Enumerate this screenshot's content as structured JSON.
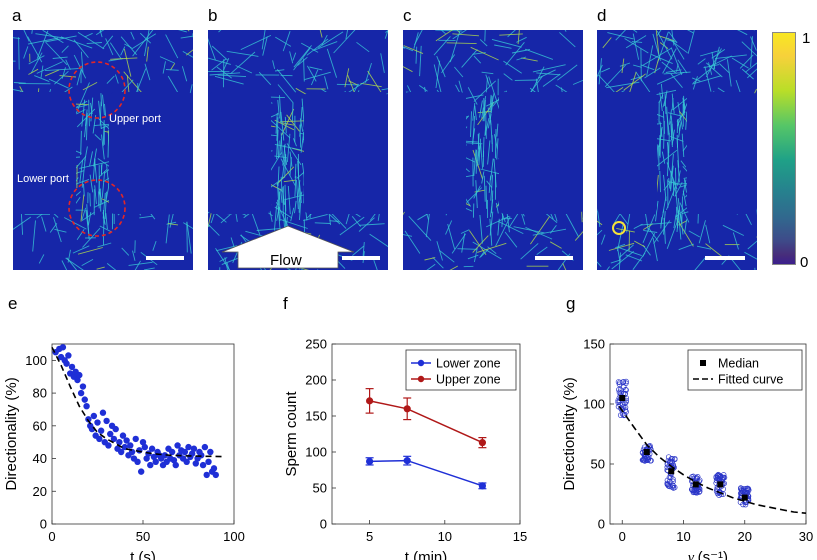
{
  "panel_labels": {
    "a": "a",
    "b": "b",
    "c": "c",
    "d": "d",
    "e": "e",
    "f": "f",
    "g": "g"
  },
  "images": {
    "a_upper_port": "Upper port",
    "a_lower_port": "Lower port",
    "b_flow": "Flow",
    "colorbar_max": "1",
    "colorbar_min": "0"
  },
  "colors": {
    "channel": "#1626a8",
    "fibre": "#38c9d6",
    "series_blue": "#1f2fd6",
    "series_red": "#b01818"
  },
  "chart_data": [
    {
      "id": "e",
      "type": "scatter",
      "xlabel": "t (s)",
      "ylabel": "Directionality (%)",
      "xlim": [
        0,
        100
      ],
      "ylim": [
        0,
        110
      ],
      "xticks": [
        0,
        50,
        100
      ],
      "yticks": [
        0,
        20,
        40,
        60,
        80,
        100
      ],
      "scatter_x": [
        2,
        4,
        5,
        6,
        7,
        8,
        9,
        10,
        11,
        12,
        13,
        14,
        15,
        16,
        17,
        18,
        19,
        20,
        21,
        22,
        23,
        24,
        25,
        26,
        27,
        28,
        29,
        30,
        31,
        32,
        33,
        34,
        35,
        36,
        37,
        38,
        39,
        40,
        41,
        42,
        43,
        44,
        45,
        46,
        47,
        48,
        49,
        50,
        51,
        52,
        53,
        54,
        55,
        56,
        57,
        58,
        59,
        60,
        61,
        62,
        63,
        64,
        65,
        66,
        67,
        68,
        69,
        70,
        71,
        72,
        73,
        74,
        75,
        76,
        77,
        78,
        79,
        80,
        81,
        82,
        83,
        84,
        85,
        86,
        87,
        88,
        89,
        90
      ],
      "scatter_y": [
        105,
        107,
        102,
        108,
        100,
        98,
        103,
        92,
        96,
        90,
        93,
        88,
        91,
        80,
        84,
        76,
        72,
        64,
        60,
        58,
        66,
        54,
        62,
        52,
        57,
        68,
        50,
        63,
        48,
        55,
        60,
        52,
        58,
        46,
        50,
        44,
        54,
        47,
        51,
        42,
        48,
        44,
        40,
        52,
        38,
        45,
        32,
        50,
        47,
        40,
        43,
        36,
        46,
        41,
        38,
        44,
        42,
        40,
        36,
        42,
        38,
        46,
        40,
        44,
        39,
        36,
        48,
        42,
        45,
        40,
        44,
        38,
        47,
        41,
        43,
        46,
        37,
        40,
        44,
        42,
        36,
        47,
        30,
        38,
        44,
        32,
        34,
        30
      ],
      "fit_x": [
        0,
        5,
        10,
        15,
        20,
        25,
        30,
        35,
        40,
        45,
        50,
        55,
        60,
        65,
        70,
        75,
        80,
        85,
        90,
        95
      ],
      "fit_y": [
        108,
        97,
        84,
        72,
        63,
        56,
        52,
        49,
        46,
        45,
        44,
        43,
        42.5,
        42,
        41.8,
        41.6,
        41.5,
        41.4,
        41.3,
        41.2
      ]
    },
    {
      "id": "f",
      "type": "line",
      "xlabel": "t (min)",
      "ylabel": "Sperm count",
      "xlim": [
        2.5,
        15
      ],
      "ylim": [
        0,
        250
      ],
      "xticks": [
        5,
        10,
        15
      ],
      "yticks": [
        0,
        50,
        100,
        150,
        200,
        250
      ],
      "legend": "top-right",
      "series": [
        {
          "name": "Lower zone",
          "x": [
            5,
            7.5,
            12.5
          ],
          "values": [
            87,
            88,
            53
          ],
          "err": [
            5,
            6,
            4
          ]
        },
        {
          "name": "Upper zone",
          "x": [
            5,
            7.5,
            12.5
          ],
          "values": [
            171,
            160,
            113
          ],
          "err": [
            17,
            15,
            7
          ]
        }
      ]
    },
    {
      "id": "g",
      "type": "scatter",
      "xlabel": "(s⁻¹)",
      "xlabel_symbol": "γ",
      "ylabel": "Directionality (%)",
      "xlim": [
        -2,
        30
      ],
      "ylim": [
        0,
        150
      ],
      "xticks": [
        0,
        10,
        20,
        30
      ],
      "yticks": [
        0,
        50,
        100,
        150
      ],
      "legend": "top-right",
      "legend_median": "Median",
      "legend_fit": "Fitted curve",
      "groups": [
        {
          "x": 0,
          "median": 105,
          "spread": [
            90,
            120
          ]
        },
        {
          "x": 4,
          "median": 60,
          "spread": [
            52,
            66
          ]
        },
        {
          "x": 8,
          "median": 44,
          "spread": [
            30,
            56
          ]
        },
        {
          "x": 12,
          "median": 33,
          "spread": [
            25,
            40
          ]
        },
        {
          "x": 16,
          "median": 33,
          "spread": [
            24,
            42
          ]
        },
        {
          "x": 20,
          "median": 22,
          "spread": [
            16,
            30
          ]
        }
      ],
      "fit_x": [
        -0.5,
        2,
        4,
        6,
        8,
        10,
        12,
        14,
        16,
        18,
        20,
        22,
        24,
        26,
        28,
        30
      ],
      "fit_y": [
        98,
        80,
        66,
        56,
        48,
        41,
        35,
        30,
        26,
        22,
        19,
        16,
        14,
        12,
        10,
        9
      ]
    }
  ]
}
